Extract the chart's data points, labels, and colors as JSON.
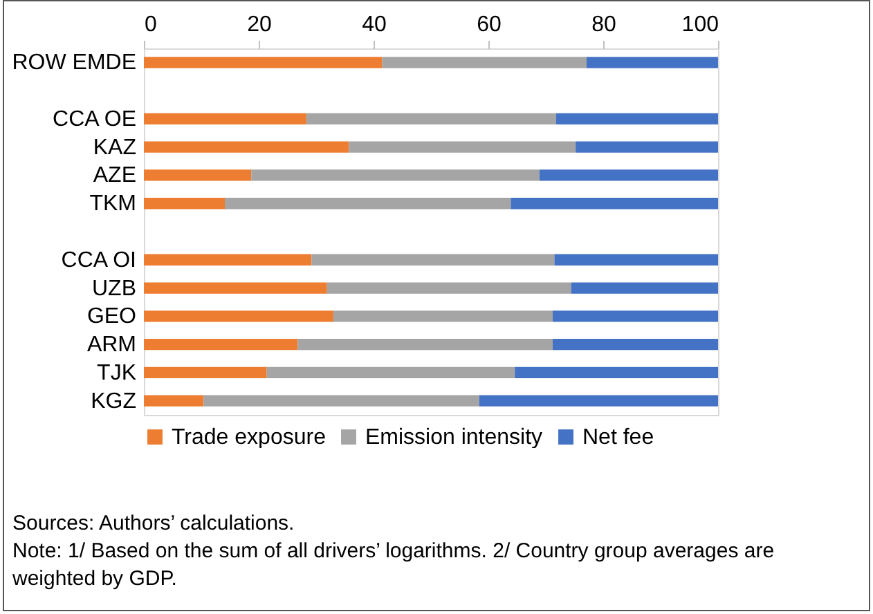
{
  "chart_data": {
    "type": "bar",
    "orientation": "horizontal",
    "stacked": true,
    "categories": [
      "ROW EMDE",
      null,
      "CCA OE",
      "KAZ",
      "AZE",
      "TKM",
      null,
      "CCA OI",
      "UZB",
      "GEO",
      "ARM",
      "TJK",
      "KGZ"
    ],
    "series": [
      {
        "name": "Trade exposure",
        "color": "#ed7d31",
        "values": [
          41.5,
          null,
          28.3,
          35.7,
          18.7,
          14.1,
          null,
          29.2,
          31.9,
          33.0,
          26.8,
          21.4,
          10.4
        ]
      },
      {
        "name": "Emission intensity",
        "color": "#a5a5a5",
        "values": [
          35.6,
          null,
          43.5,
          39.5,
          50.2,
          49.8,
          null,
          42.3,
          42.5,
          38.2,
          44.4,
          43.2,
          48.0
        ]
      },
      {
        "name": "Net fee",
        "color": "#4472c4",
        "values": [
          22.9,
          null,
          28.2,
          24.8,
          31.1,
          36.1,
          null,
          28.5,
          25.6,
          28.8,
          28.8,
          35.4,
          41.6
        ]
      }
    ],
    "xlim": [
      0,
      100
    ],
    "xticks": [
      0,
      20,
      40,
      60,
      80,
      100
    ],
    "grid": false,
    "legend": "bottom",
    "annotations": [
      "Sources: Authors’ calculations.",
      "Note: 1/ Based on the sum of all drivers’ logarithms. 2/ Country group averages are weighted by GDP."
    ]
  }
}
